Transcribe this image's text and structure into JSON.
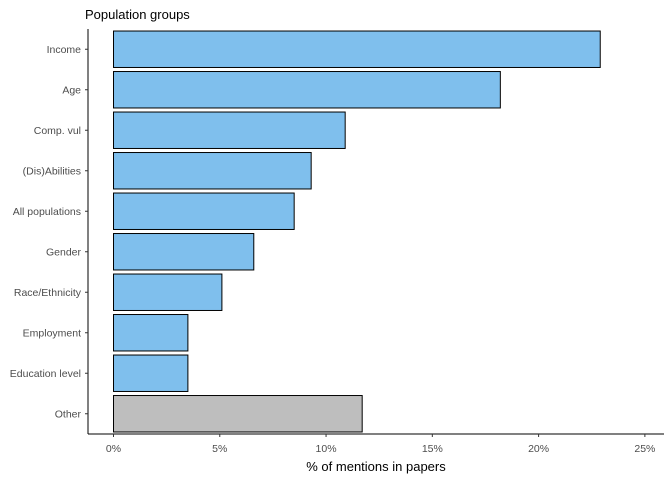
{
  "chart_data": {
    "type": "bar",
    "orientation": "horizontal",
    "title": "",
    "ylabel": "Population groups",
    "xlabel": "% of mentions in papers",
    "categories": [
      "Income",
      "Age",
      "Comp. vul",
      "(Dis)Abilities",
      "All populations",
      "Gender",
      "Race/Ethnicity",
      "Employment",
      "Education level",
      "Other"
    ],
    "values": [
      22.9,
      18.2,
      10.9,
      9.3,
      8.5,
      6.6,
      5.1,
      3.5,
      3.5,
      11.7
    ],
    "xlim": [
      -1.2,
      25.9
    ],
    "x_ticks": [
      0,
      5,
      10,
      15,
      20,
      25
    ],
    "x_tick_labels": [
      "0%",
      "5%",
      "10%",
      "15%",
      "20%",
      "25%"
    ],
    "colors": {
      "default": "#7fbfed",
      "Other": "#bebebe"
    },
    "grid": false,
    "legend": "none"
  }
}
